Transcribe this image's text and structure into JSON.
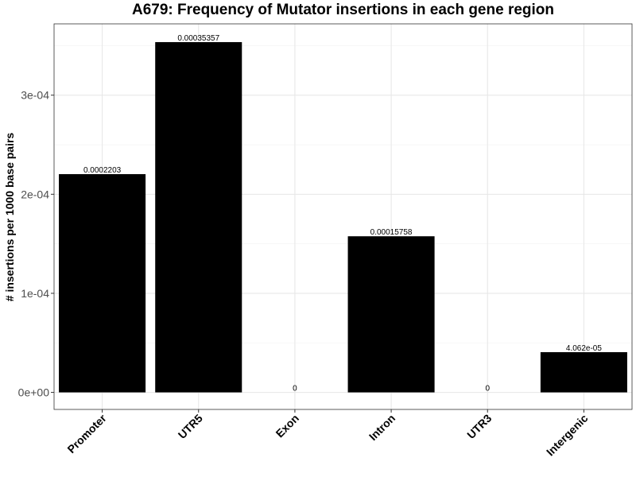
{
  "chart_data": {
    "type": "bar",
    "title": "A679: Frequency of Mutator insertions in each gene region",
    "xlabel": "",
    "ylabel": "# insertions per 1000 base pairs",
    "categories": [
      "Promoter",
      "UTR5",
      "Exon",
      "Intron",
      "UTR3",
      "Intergenic"
    ],
    "values": [
      0.0002203,
      0.00035357,
      0,
      0.00015758,
      0,
      4.062e-05
    ],
    "value_labels": [
      "0.0002203",
      "0.00035357",
      "0",
      "0.00015758",
      "0",
      "4.062e-05"
    ],
    "ylim": [
      -1.72e-05,
      0.000372
    ],
    "yticks": [
      0,
      0.0001,
      0.0002,
      0.0003
    ],
    "ytick_labels": [
      "0e+00",
      "1e-04",
      "2e-04",
      "3e-04"
    ],
    "bar_color": "#000000",
    "grid": true,
    "legend": "none"
  }
}
